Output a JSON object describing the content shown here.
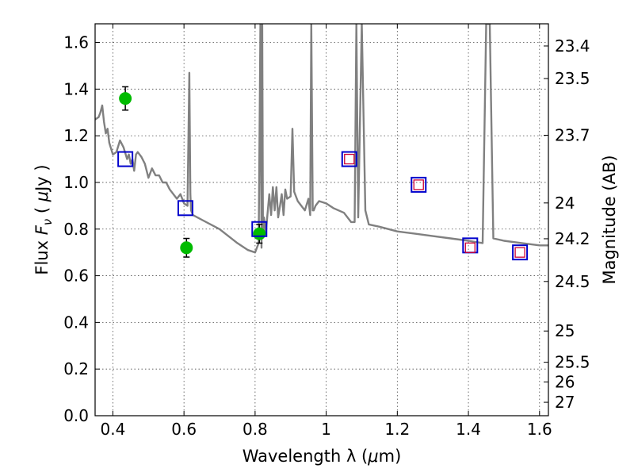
{
  "chart_data": {
    "type": "scatter",
    "xlabel_text": "Wavelength  λ (",
    "xlabel_mu": "μ",
    "xlabel_unit": "m)",
    "ylabel_text": "Flux  ",
    "ylabel_sym": "F",
    "ylabel_sub": "ν",
    "ylabel_open": "  ( ",
    "ylabel_mu": "μ",
    "ylabel_unit": "Jy )",
    "y2label": "Magnitude (AB)",
    "xlim": [
      0.35,
      1.625
    ],
    "ylim": [
      0.0,
      1.68
    ],
    "xticks": [
      "0.4",
      "0.6",
      "0.8",
      "1",
      "1.2",
      "1.4",
      "1.6"
    ],
    "yticks": [
      "0.0",
      "0.2",
      "0.4",
      "0.6",
      "0.8",
      "1.0",
      "1.2",
      "1.4",
      "1.6"
    ],
    "y2ticks": [
      "23.4",
      "23.5",
      "23.7",
      "24",
      "24.2",
      "24.5",
      "25",
      "25.5",
      "26",
      "27"
    ],
    "grid": true,
    "series": [
      {
        "kind": "line",
        "color": "#808080",
        "x": [
          0.35,
          0.36,
          0.365,
          0.37,
          0.375,
          0.38,
          0.385,
          0.39,
          0.4,
          0.41,
          0.42,
          0.43,
          0.44,
          0.445,
          0.45,
          0.455,
          0.46,
          0.465,
          0.47,
          0.48,
          0.49,
          0.5,
          0.51,
          0.52,
          0.53,
          0.54,
          0.55,
          0.56,
          0.57,
          0.58,
          0.59,
          0.6,
          0.61,
          0.615,
          0.618,
          0.62,
          0.625,
          0.65,
          0.7,
          0.75,
          0.78,
          0.8,
          0.81,
          0.815,
          0.818,
          0.82,
          0.822,
          0.825,
          0.83,
          0.84,
          0.845,
          0.85,
          0.855,
          0.86,
          0.865,
          0.87,
          0.875,
          0.88,
          0.885,
          0.89,
          0.9,
          0.905,
          0.91,
          0.92,
          0.93,
          0.94,
          0.95,
          0.955,
          0.958,
          0.962,
          0.965,
          0.97,
          0.98,
          1.0,
          1.02,
          1.05,
          1.07,
          1.08,
          1.085,
          1.09,
          1.1,
          1.11,
          1.12,
          1.15,
          1.2,
          1.25,
          1.3,
          1.35,
          1.4,
          1.44,
          1.45,
          1.46,
          1.47,
          1.5,
          1.55,
          1.6,
          1.625
        ],
        "y": [
          1.27,
          1.28,
          1.3,
          1.33,
          1.26,
          1.21,
          1.23,
          1.17,
          1.12,
          1.13,
          1.18,
          1.15,
          1.1,
          1.12,
          1.08,
          1.1,
          1.05,
          1.12,
          1.13,
          1.11,
          1.08,
          1.02,
          1.06,
          1.03,
          1.03,
          1.0,
          1.0,
          0.97,
          0.95,
          0.93,
          0.95,
          0.91,
          0.9,
          1.47,
          0.95,
          0.88,
          0.86,
          0.84,
          0.8,
          0.74,
          0.71,
          0.7,
          0.74,
          1.68,
          0.72,
          1.68,
          0.78,
          0.85,
          0.78,
          0.95,
          0.86,
          0.98,
          0.88,
          0.98,
          0.85,
          0.9,
          0.95,
          0.86,
          0.97,
          0.93,
          0.94,
          1.23,
          0.96,
          0.92,
          0.9,
          0.88,
          0.93,
          0.86,
          1.68,
          0.88,
          0.88,
          0.9,
          0.92,
          0.91,
          0.89,
          0.87,
          0.83,
          0.83,
          1.68,
          0.85,
          1.68,
          0.88,
          0.82,
          0.81,
          0.79,
          0.78,
          0.77,
          0.76,
          0.75,
          0.74,
          1.68,
          1.68,
          0.76,
          0.75,
          0.74,
          0.73,
          0.73
        ]
      },
      {
        "kind": "points-error",
        "color": "#00bb00",
        "x": [
          0.435,
          0.607,
          0.812
        ],
        "y": [
          1.36,
          0.72,
          0.78
        ],
        "yerr": [
          0.05,
          0.04,
          0.04
        ]
      },
      {
        "kind": "open-squares",
        "color": "#0000cc",
        "x": [
          0.435,
          0.604,
          0.812,
          1.065,
          1.26,
          1.405,
          1.545
        ],
        "y": [
          1.1,
          0.89,
          0.8,
          1.1,
          0.99,
          0.73,
          0.7
        ]
      },
      {
        "kind": "open-squares-small",
        "color": "#cc0033",
        "x": [
          1.065,
          1.26,
          1.405,
          1.545
        ],
        "y": [
          1.1,
          0.99,
          0.72,
          0.7
        ]
      }
    ]
  }
}
